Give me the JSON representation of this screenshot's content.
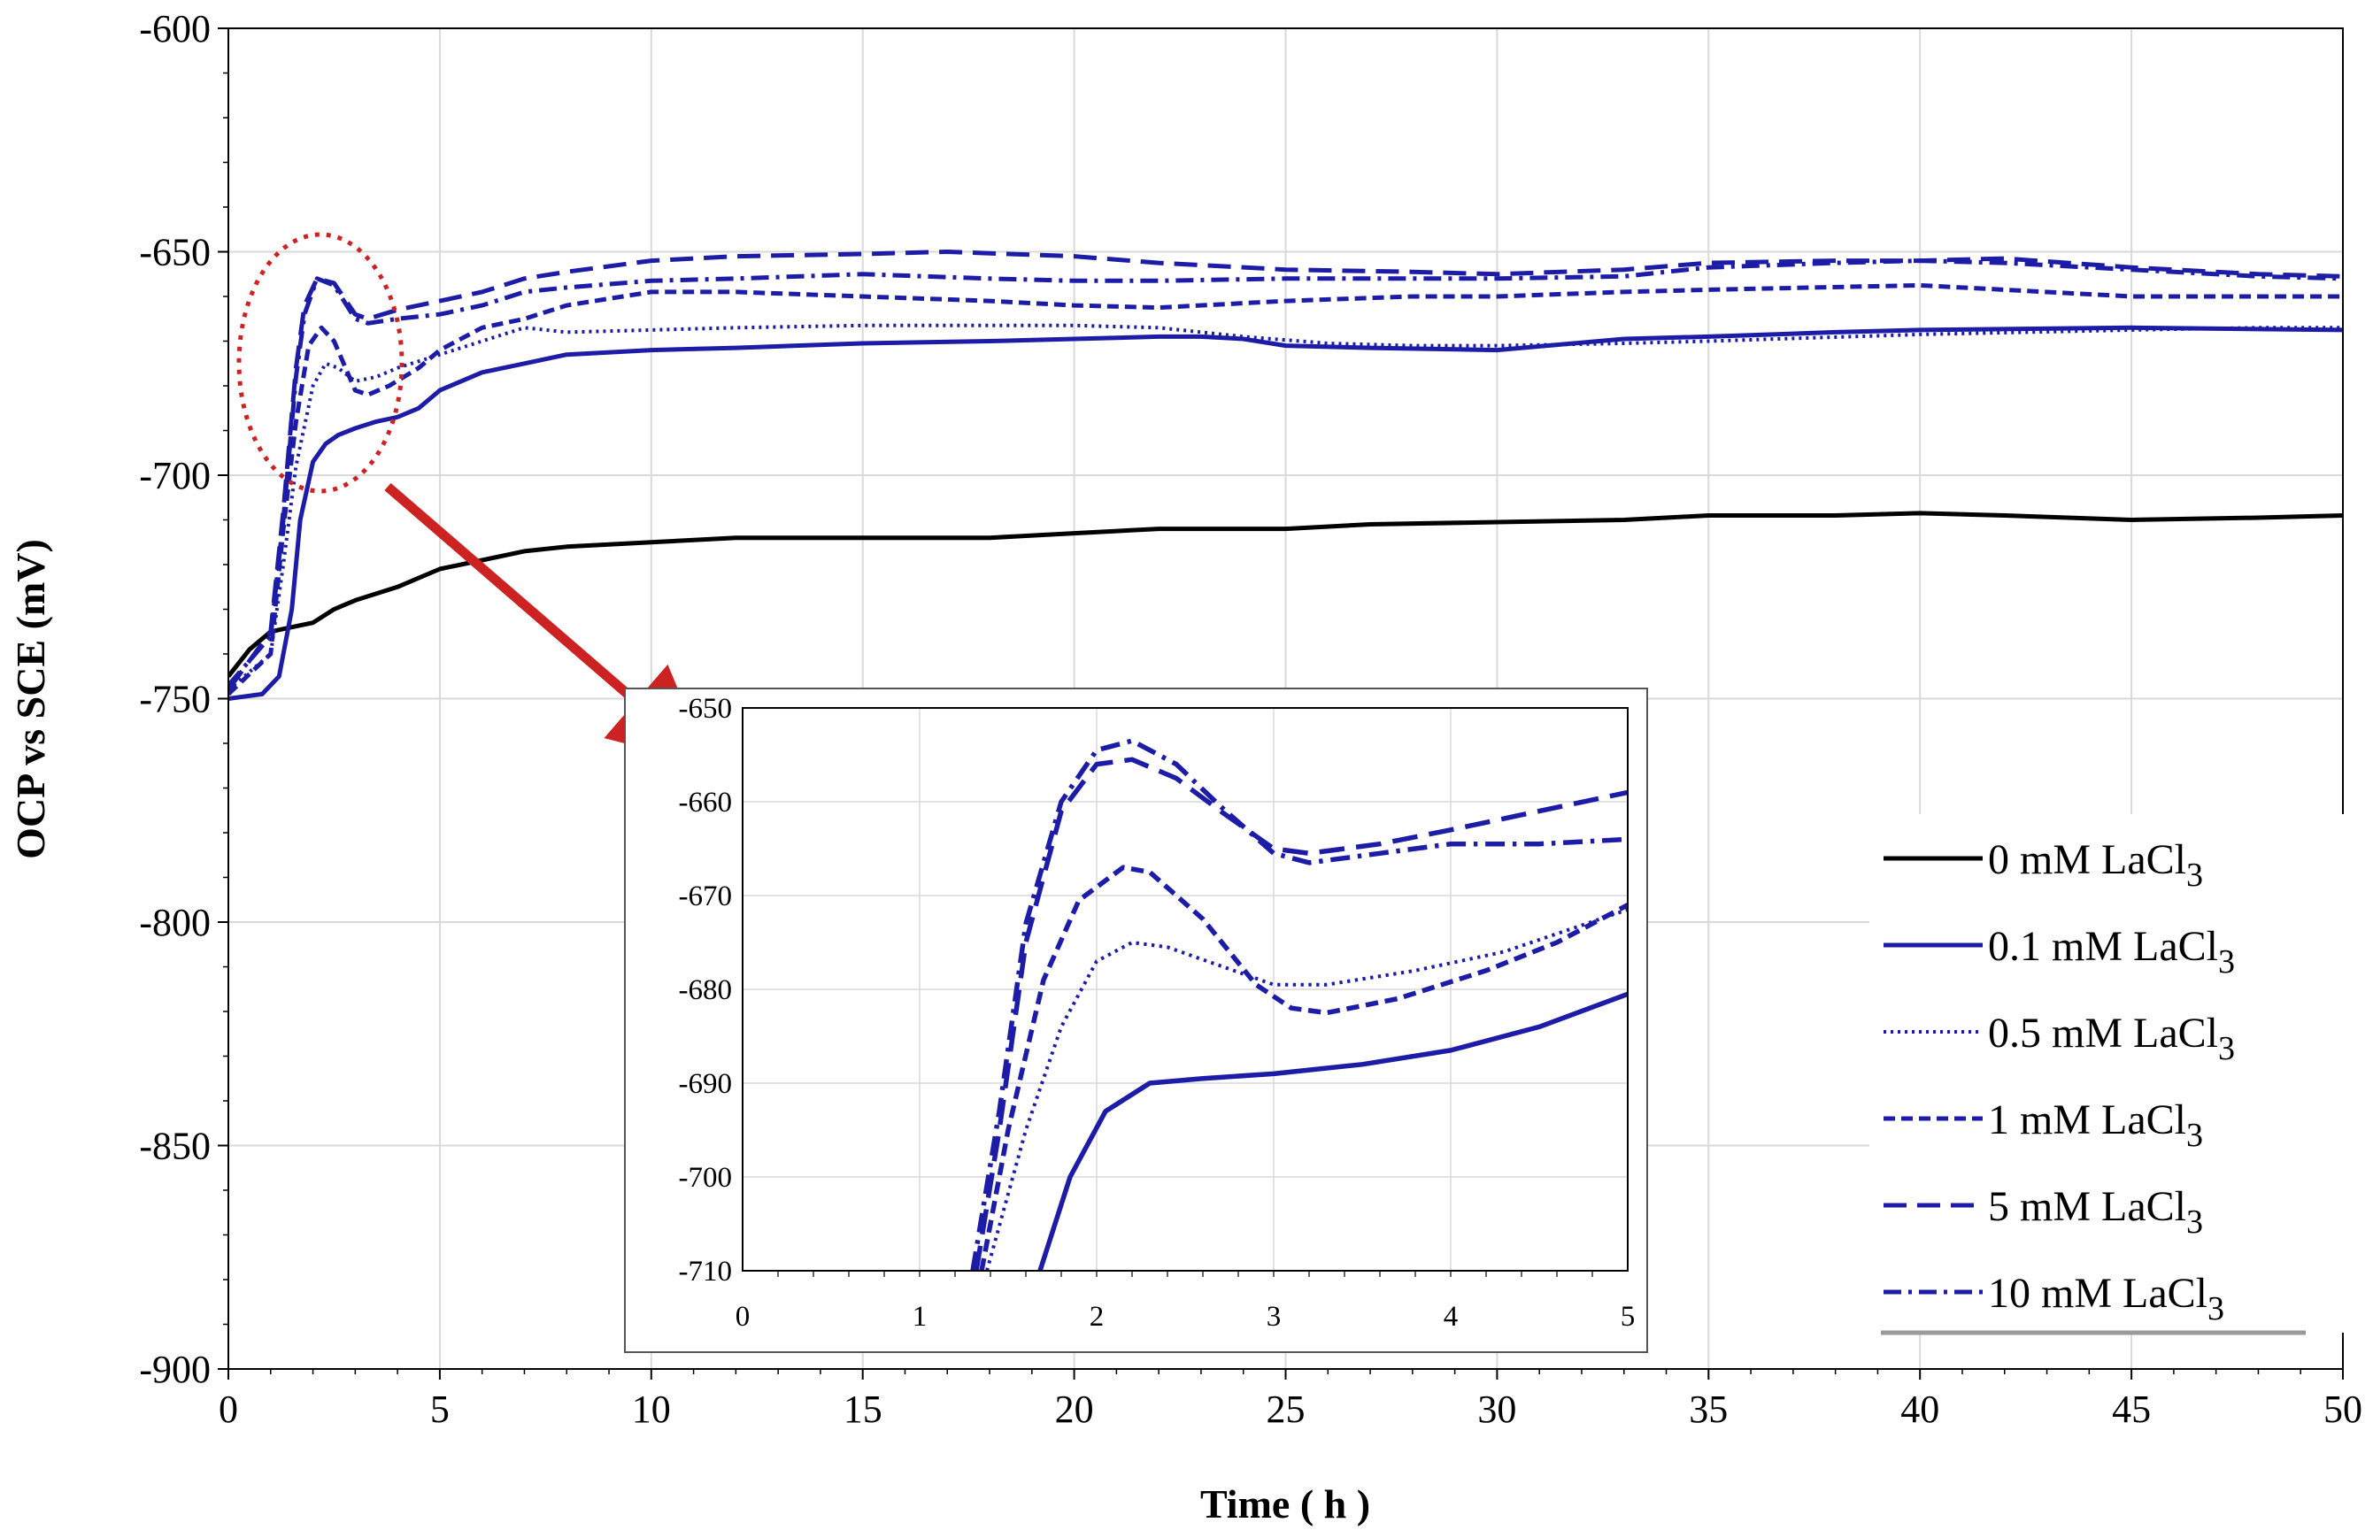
{
  "colors": {
    "control": "#000000",
    "lacl3": "#1c1ca6",
    "grid": "#d9d9d9",
    "highlight": "#cc2222"
  },
  "chart_data": {
    "type": "line",
    "xlabel": "Time ( h )",
    "ylabel": "OCP vs SCE (mV)",
    "xlim": [
      0,
      50
    ],
    "ylim": [
      -900,
      -600
    ],
    "x_ticks": [
      "0",
      "5",
      "10",
      "15",
      "20",
      "25",
      "30",
      "35",
      "40",
      "45",
      "50"
    ],
    "y_ticks": [
      "-600",
      "-650",
      "-700",
      "-750",
      "-800",
      "-850",
      "-900"
    ],
    "grid": true,
    "legend_position": "bottom-right",
    "series": [
      {
        "id": "s0",
        "name": "0 mM LaCl",
        "subscript": "3",
        "style": "solid",
        "color": "#000000",
        "points": [
          [
            0,
            -745
          ],
          [
            0.5,
            -739
          ],
          [
            1,
            -735
          ],
          [
            1.5,
            -734
          ],
          [
            2,
            -733
          ],
          [
            2.5,
            -730
          ],
          [
            3,
            -728
          ],
          [
            4,
            -725
          ],
          [
            5,
            -721
          ],
          [
            6,
            -719
          ],
          [
            7,
            -717
          ],
          [
            8,
            -716
          ],
          [
            10,
            -715
          ],
          [
            12,
            -714
          ],
          [
            15,
            -714
          ],
          [
            18,
            -714
          ],
          [
            20,
            -713
          ],
          [
            22,
            -712
          ],
          [
            24,
            -712
          ],
          [
            25,
            -712
          ],
          [
            27,
            -711
          ],
          [
            30,
            -710.5
          ],
          [
            33,
            -710
          ],
          [
            34,
            -709.5
          ],
          [
            35,
            -709
          ],
          [
            38,
            -709
          ],
          [
            40,
            -708.5
          ],
          [
            42,
            -709
          ],
          [
            45,
            -710
          ],
          [
            48,
            -709.5
          ],
          [
            50,
            -709
          ]
        ]
      },
      {
        "id": "s01",
        "name": "0.1 mM LaCl",
        "subscript": "3",
        "style": "solid",
        "color": "#1c1ca6",
        "points": [
          [
            0,
            -750
          ],
          [
            0.8,
            -749
          ],
          [
            1.2,
            -745
          ],
          [
            1.5,
            -730
          ],
          [
            1.7,
            -710
          ],
          [
            2,
            -697
          ],
          [
            2.3,
            -693
          ],
          [
            2.6,
            -691
          ],
          [
            3,
            -689.5
          ],
          [
            3.5,
            -688
          ],
          [
            4,
            -687
          ],
          [
            4.5,
            -685
          ],
          [
            5,
            -681
          ],
          [
            6,
            -677
          ],
          [
            7,
            -675
          ],
          [
            8,
            -673
          ],
          [
            10,
            -672
          ],
          [
            12,
            -671.5
          ],
          [
            15,
            -670.5
          ],
          [
            18,
            -670
          ],
          [
            20,
            -669.5
          ],
          [
            22,
            -669
          ],
          [
            23,
            -669
          ],
          [
            24,
            -669.5
          ],
          [
            25,
            -671
          ],
          [
            27,
            -671.5
          ],
          [
            30,
            -672
          ],
          [
            33,
            -669.5
          ],
          [
            35,
            -669
          ],
          [
            38,
            -668
          ],
          [
            40,
            -667.5
          ],
          [
            45,
            -667
          ],
          [
            50,
            -667.5
          ]
        ]
      },
      {
        "id": "s05",
        "name": "0.5 mM LaCl",
        "subscript": "3",
        "style": "dotted",
        "color": "#1c1ca6",
        "points": [
          [
            0,
            -748
          ],
          [
            1,
            -740
          ],
          [
            1.3,
            -720
          ],
          [
            1.6,
            -698
          ],
          [
            2,
            -680
          ],
          [
            2.3,
            -675
          ],
          [
            2.6,
            -676
          ],
          [
            3,
            -679
          ],
          [
            3.5,
            -678
          ],
          [
            4,
            -676
          ],
          [
            5,
            -673
          ],
          [
            6,
            -670
          ],
          [
            7,
            -667
          ],
          [
            8,
            -668
          ],
          [
            10,
            -667.5
          ],
          [
            12,
            -667
          ],
          [
            15,
            -666.5
          ],
          [
            20,
            -666.5
          ],
          [
            22,
            -667
          ],
          [
            24,
            -669
          ],
          [
            26,
            -670.5
          ],
          [
            28,
            -671
          ],
          [
            30,
            -671
          ],
          [
            33,
            -670.5
          ],
          [
            35,
            -670
          ],
          [
            40,
            -668.5
          ],
          [
            45,
            -667.5
          ],
          [
            48,
            -667
          ],
          [
            50,
            -667
          ]
        ]
      },
      {
        "id": "s1",
        "name": "1 mM LaCl",
        "subscript": "3",
        "style": "dense-dash",
        "color": "#1c1ca6",
        "points": [
          [
            0,
            -749
          ],
          [
            1,
            -740
          ],
          [
            1.3,
            -712
          ],
          [
            1.6,
            -688
          ],
          [
            1.9,
            -671
          ],
          [
            2.2,
            -667
          ],
          [
            2.5,
            -670
          ],
          [
            3,
            -681
          ],
          [
            3.3,
            -682
          ],
          [
            3.8,
            -680
          ],
          [
            4.5,
            -676
          ],
          [
            5,
            -672
          ],
          [
            6,
            -667
          ],
          [
            7,
            -665
          ],
          [
            8,
            -662
          ],
          [
            10,
            -659
          ],
          [
            12,
            -659
          ],
          [
            15,
            -660
          ],
          [
            18,
            -661
          ],
          [
            20,
            -662
          ],
          [
            22,
            -662.5
          ],
          [
            25,
            -661
          ],
          [
            28,
            -660
          ],
          [
            30,
            -660
          ],
          [
            33,
            -659
          ],
          [
            35,
            -658.5
          ],
          [
            40,
            -657.5
          ],
          [
            45,
            -660
          ],
          [
            50,
            -660
          ]
        ]
      },
      {
        "id": "s5",
        "name": "5 mM LaCl",
        "subscript": "3",
        "style": "long-dash",
        "color": "#1c1ca6",
        "points": [
          [
            0,
            -748
          ],
          [
            1,
            -735
          ],
          [
            1.3,
            -708
          ],
          [
            1.6,
            -676
          ],
          [
            1.8,
            -662
          ],
          [
            2.1,
            -656
          ],
          [
            2.5,
            -657
          ],
          [
            3,
            -664
          ],
          [
            3.3,
            -665
          ],
          [
            4,
            -663
          ],
          [
            5,
            -661
          ],
          [
            6,
            -659
          ],
          [
            7,
            -656
          ],
          [
            8,
            -654.5
          ],
          [
            10,
            -652
          ],
          [
            12,
            -651
          ],
          [
            15,
            -650.5
          ],
          [
            17,
            -650
          ],
          [
            20,
            -651
          ],
          [
            22,
            -652.5
          ],
          [
            25,
            -654
          ],
          [
            28,
            -654.5
          ],
          [
            30,
            -655
          ],
          [
            33,
            -654
          ],
          [
            35,
            -652.5
          ],
          [
            38,
            -652
          ],
          [
            40,
            -652
          ],
          [
            42,
            -651.5
          ],
          [
            45,
            -653.5
          ],
          [
            48,
            -655
          ],
          [
            50,
            -655.5
          ]
        ]
      },
      {
        "id": "s10",
        "name": "10 mM LaCl",
        "subscript": "3",
        "style": "dash-dot",
        "color": "#1c1ca6",
        "points": [
          [
            0,
            -747
          ],
          [
            1,
            -736
          ],
          [
            1.3,
            -710
          ],
          [
            1.6,
            -678
          ],
          [
            1.8,
            -664
          ],
          [
            2.1,
            -656
          ],
          [
            2.5,
            -657.5
          ],
          [
            3,
            -665
          ],
          [
            3.3,
            -666
          ],
          [
            4,
            -665
          ],
          [
            5,
            -664
          ],
          [
            6,
            -662
          ],
          [
            7,
            -659
          ],
          [
            8,
            -658
          ],
          [
            10,
            -656.5
          ],
          [
            12,
            -656
          ],
          [
            15,
            -655
          ],
          [
            18,
            -656
          ],
          [
            20,
            -656.5
          ],
          [
            22,
            -656.5
          ],
          [
            25,
            -656
          ],
          [
            28,
            -656
          ],
          [
            30,
            -656
          ],
          [
            33,
            -655.5
          ],
          [
            35,
            -653.5
          ],
          [
            38,
            -652.5
          ],
          [
            40,
            -652
          ],
          [
            42,
            -652.5
          ],
          [
            45,
            -654
          ],
          [
            48,
            -655.5
          ],
          [
            50,
            -656
          ]
        ]
      }
    ],
    "inset": {
      "xlim": [
        0,
        5
      ],
      "ylim": [
        -710,
        -650
      ],
      "x_ticks": [
        "0",
        "1",
        "2",
        "3",
        "4",
        "5"
      ],
      "y_ticks": [
        "-650",
        "-660",
        "-670",
        "-680",
        "-690",
        "-700",
        "-710"
      ],
      "series": [
        {
          "id": "i01",
          "style": "solid",
          "color": "#1c1ca6",
          "points": [
            [
              1.68,
              -710
            ],
            [
              1.85,
              -700
            ],
            [
              2.05,
              -693
            ],
            [
              2.3,
              -690
            ],
            [
              2.6,
              -689.5
            ],
            [
              3,
              -689
            ],
            [
              3.5,
              -688
            ],
            [
              4,
              -686.5
            ],
            [
              4.5,
              -684
            ],
            [
              5,
              -680.5
            ]
          ]
        },
        {
          "id": "i05",
          "style": "dotted",
          "color": "#1c1ca6",
          "points": [
            [
              1.38,
              -710
            ],
            [
              1.6,
              -695
            ],
            [
              1.8,
              -684
            ],
            [
              2,
              -677
            ],
            [
              2.2,
              -675
            ],
            [
              2.4,
              -675.5
            ],
            [
              2.7,
              -677.5
            ],
            [
              3,
              -679.5
            ],
            [
              3.3,
              -679.5
            ],
            [
              3.8,
              -678
            ],
            [
              4.3,
              -676
            ],
            [
              5,
              -671.5
            ]
          ]
        },
        {
          "id": "i1",
          "style": "dense-dash",
          "color": "#1c1ca6",
          "points": [
            [
              1.35,
              -710
            ],
            [
              1.5,
              -695
            ],
            [
              1.7,
              -679
            ],
            [
              1.9,
              -670.5
            ],
            [
              2.15,
              -667
            ],
            [
              2.3,
              -667.5
            ],
            [
              2.6,
              -672.5
            ],
            [
              2.9,
              -679.5
            ],
            [
              3.1,
              -682
            ],
            [
              3.3,
              -682.5
            ],
            [
              3.7,
              -681
            ],
            [
              4.2,
              -678
            ],
            [
              4.6,
              -675
            ],
            [
              5,
              -671
            ]
          ]
        },
        {
          "id": "i5",
          "style": "long-dash",
          "color": "#1c1ca6",
          "points": [
            [
              1.32,
              -710
            ],
            [
              1.45,
              -695
            ],
            [
              1.6,
              -675
            ],
            [
              1.8,
              -661
            ],
            [
              2,
              -656
            ],
            [
              2.2,
              -655.5
            ],
            [
              2.45,
              -657.5
            ],
            [
              2.7,
              -661
            ],
            [
              3,
              -665
            ],
            [
              3.2,
              -665.5
            ],
            [
              3.6,
              -664.5
            ],
            [
              4,
              -663
            ],
            [
              4.5,
              -661
            ],
            [
              5,
              -659
            ]
          ]
        },
        {
          "id": "i10",
          "style": "dash-dot",
          "color": "#1c1ca6",
          "points": [
            [
              1.3,
              -710
            ],
            [
              1.45,
              -693
            ],
            [
              1.6,
              -673
            ],
            [
              1.8,
              -660
            ],
            [
              2,
              -654.5
            ],
            [
              2.2,
              -653.5
            ],
            [
              2.45,
              -656
            ],
            [
              2.7,
              -660.5
            ],
            [
              3,
              -665.5
            ],
            [
              3.2,
              -666.5
            ],
            [
              3.6,
              -665.5
            ],
            [
              4,
              -664.5
            ],
            [
              4.5,
              -664.5
            ],
            [
              5,
              -664
            ]
          ]
        }
      ]
    }
  }
}
